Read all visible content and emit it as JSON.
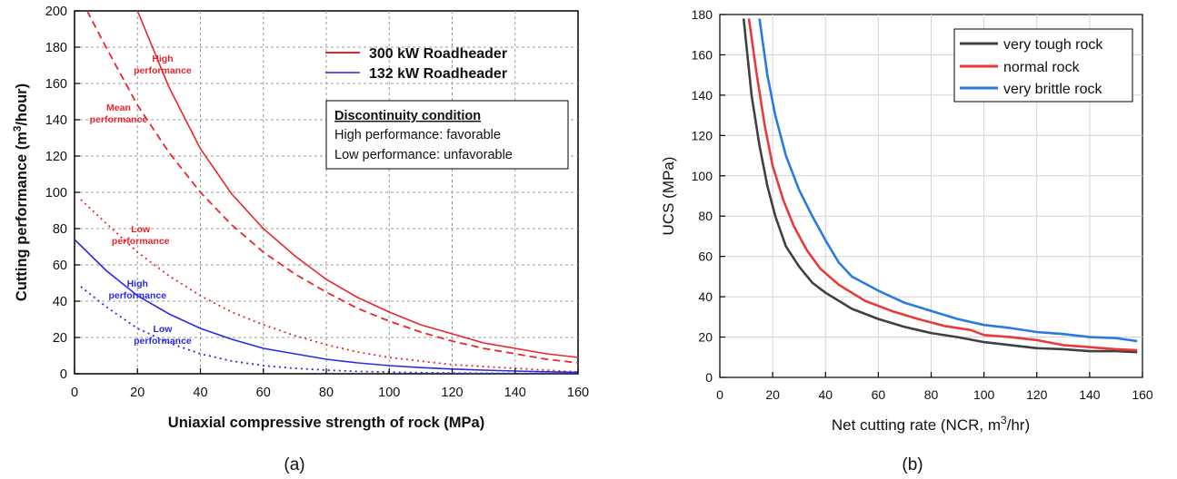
{
  "chart_data": [
    {
      "type": "line",
      "panel_label": "(a)",
      "xlabel": "Uniaxial compressive strength of rock (MPa)",
      "ylabel": "Cutting performance (m³/hour)",
      "xlim": [
        0,
        160
      ],
      "ylim": [
        0,
        200
      ],
      "xticks": [
        0,
        20,
        40,
        60,
        80,
        100,
        120,
        140,
        160
      ],
      "yticks": [
        0,
        20,
        40,
        60,
        80,
        100,
        120,
        140,
        160,
        180,
        200
      ],
      "grid": true,
      "legend_position": "top-right",
      "legend": [
        {
          "label": "300 kW Roadheader",
          "color": "#e8262b"
        },
        {
          "label": "132 kW Roadheader",
          "color": "#2a2ae8"
        }
      ],
      "note_box": {
        "title": "Discontinuity condition",
        "lines": [
          "High performance: favorable",
          "Low performance: unfavorable"
        ]
      },
      "series": [
        {
          "group": "300 kW Roadheader",
          "style": "solid",
          "color": "#e8262b",
          "x": [
            20,
            30,
            40,
            50,
            60,
            70,
            80,
            90,
            100,
            110,
            120,
            130,
            140,
            150,
            160
          ],
          "y": [
            200,
            158,
            124,
            99,
            80,
            65,
            52,
            42,
            34,
            27,
            22,
            17,
            14,
            11,
            9
          ]
        },
        {
          "group": "300 kW Roadheader",
          "style": "dashed",
          "color": "#e8262b",
          "x": [
            4,
            10,
            20,
            30,
            40,
            50,
            60,
            70,
            80,
            90,
            100,
            110,
            120,
            130,
            140,
            150,
            160
          ],
          "y": [
            200,
            180,
            148,
            122,
            100,
            82,
            67,
            55,
            45,
            36,
            29,
            23,
            18,
            14,
            11,
            8,
            6
          ]
        },
        {
          "group": "300 kW Roadheader",
          "style": "dotted",
          "color": "#e8262b",
          "x": [
            2,
            10,
            20,
            30,
            40,
            50,
            60,
            70,
            80,
            90,
            100,
            110,
            120,
            130,
            140,
            150,
            160
          ],
          "y": [
            96,
            83,
            67,
            54,
            43,
            34,
            27,
            21,
            16,
            12,
            9,
            7,
            5,
            4,
            3,
            2,
            1
          ]
        },
        {
          "group": "132 kW Roadheader",
          "style": "solid",
          "color": "#2a2ae8",
          "x": [
            0,
            10,
            20,
            30,
            40,
            50,
            60,
            70,
            80,
            90,
            100,
            110,
            120,
            130,
            140,
            150,
            160
          ],
          "y": [
            74,
            57,
            43,
            33,
            25,
            19,
            14,
            11,
            8,
            6,
            4.5,
            3.4,
            2.6,
            2,
            1.5,
            1.1,
            0.8
          ]
        },
        {
          "group": "132 kW Roadheader",
          "style": "dotted",
          "color": "#2a2ae8",
          "x": [
            2,
            10,
            20,
            30,
            40,
            50,
            60,
            70,
            80,
            90,
            100,
            110,
            120,
            130,
            140,
            150,
            160
          ],
          "y": [
            48,
            37,
            25,
            17,
            11,
            7,
            4.5,
            3,
            2,
            1.3,
            0.9,
            0.6,
            0.4,
            0.3,
            0.2,
            0.15,
            0.1
          ]
        }
      ],
      "annotations": [
        {
          "lines": [
            "High",
            "performance"
          ],
          "x": 28,
          "y": 172,
          "color": "#e8262b"
        },
        {
          "lines": [
            "Mean",
            "performance"
          ],
          "x": 14,
          "y": 145,
          "color": "#e8262b"
        },
        {
          "lines": [
            "Low",
            "performance"
          ],
          "x": 21,
          "y": 78,
          "color": "#e8262b"
        },
        {
          "lines": [
            "High",
            "performance"
          ],
          "x": 20,
          "y": 48,
          "color": "#2a2ae8"
        },
        {
          "lines": [
            "Low",
            "performance"
          ],
          "x": 28,
          "y": 23,
          "color": "#2a2ae8"
        }
      ]
    },
    {
      "type": "line",
      "panel_label": "(b)",
      "xlabel": "Net cutting rate (NCR, m³/hr)",
      "ylabel": "UCS (MPa)",
      "xlim": [
        0,
        160
      ],
      "ylim": [
        0,
        180
      ],
      "xticks": [
        0,
        20,
        40,
        60,
        80,
        100,
        120,
        140,
        160
      ],
      "yticks": [
        0,
        20,
        40,
        60,
        80,
        100,
        120,
        140,
        160,
        180
      ],
      "grid": true,
      "legend_position": "top-right",
      "series": [
        {
          "name": "very tough rock",
          "color": "#404040",
          "x": [
            9,
            12,
            15,
            18,
            21,
            25,
            30,
            35,
            40,
            50,
            60,
            70,
            80,
            90,
            100,
            110,
            120,
            130,
            140,
            150,
            158
          ],
          "y": [
            178,
            140,
            115,
            95,
            80,
            65,
            55,
            47,
            42,
            34,
            29,
            25,
            22,
            20,
            17.5,
            16,
            14.5,
            14,
            13,
            13,
            12.5
          ]
        },
        {
          "name": "normal rock",
          "color": "#e83a3a",
          "x": [
            11,
            14,
            17,
            20,
            24,
            28,
            33,
            38,
            45,
            55,
            65,
            75,
            85,
            95,
            100,
            110,
            120,
            130,
            140,
            150,
            158
          ],
          "y": [
            178,
            150,
            125,
            105,
            88,
            75,
            63,
            54,
            46,
            38,
            33,
            29,
            25.5,
            23.5,
            21,
            20,
            18.5,
            16,
            15,
            14,
            13.5
          ]
        },
        {
          "name": "very brittle rock",
          "color": "#2a7ae0",
          "x": [
            15,
            18,
            21,
            25,
            30,
            35,
            40,
            45,
            50,
            60,
            70,
            80,
            90,
            100,
            110,
            120,
            130,
            140,
            150,
            158
          ],
          "y": [
            178,
            150,
            130,
            110,
            93,
            80,
            68,
            57,
            50,
            43,
            37,
            33,
            29,
            26,
            24.5,
            22.5,
            21.5,
            20,
            19.5,
            18
          ]
        }
      ]
    }
  ]
}
